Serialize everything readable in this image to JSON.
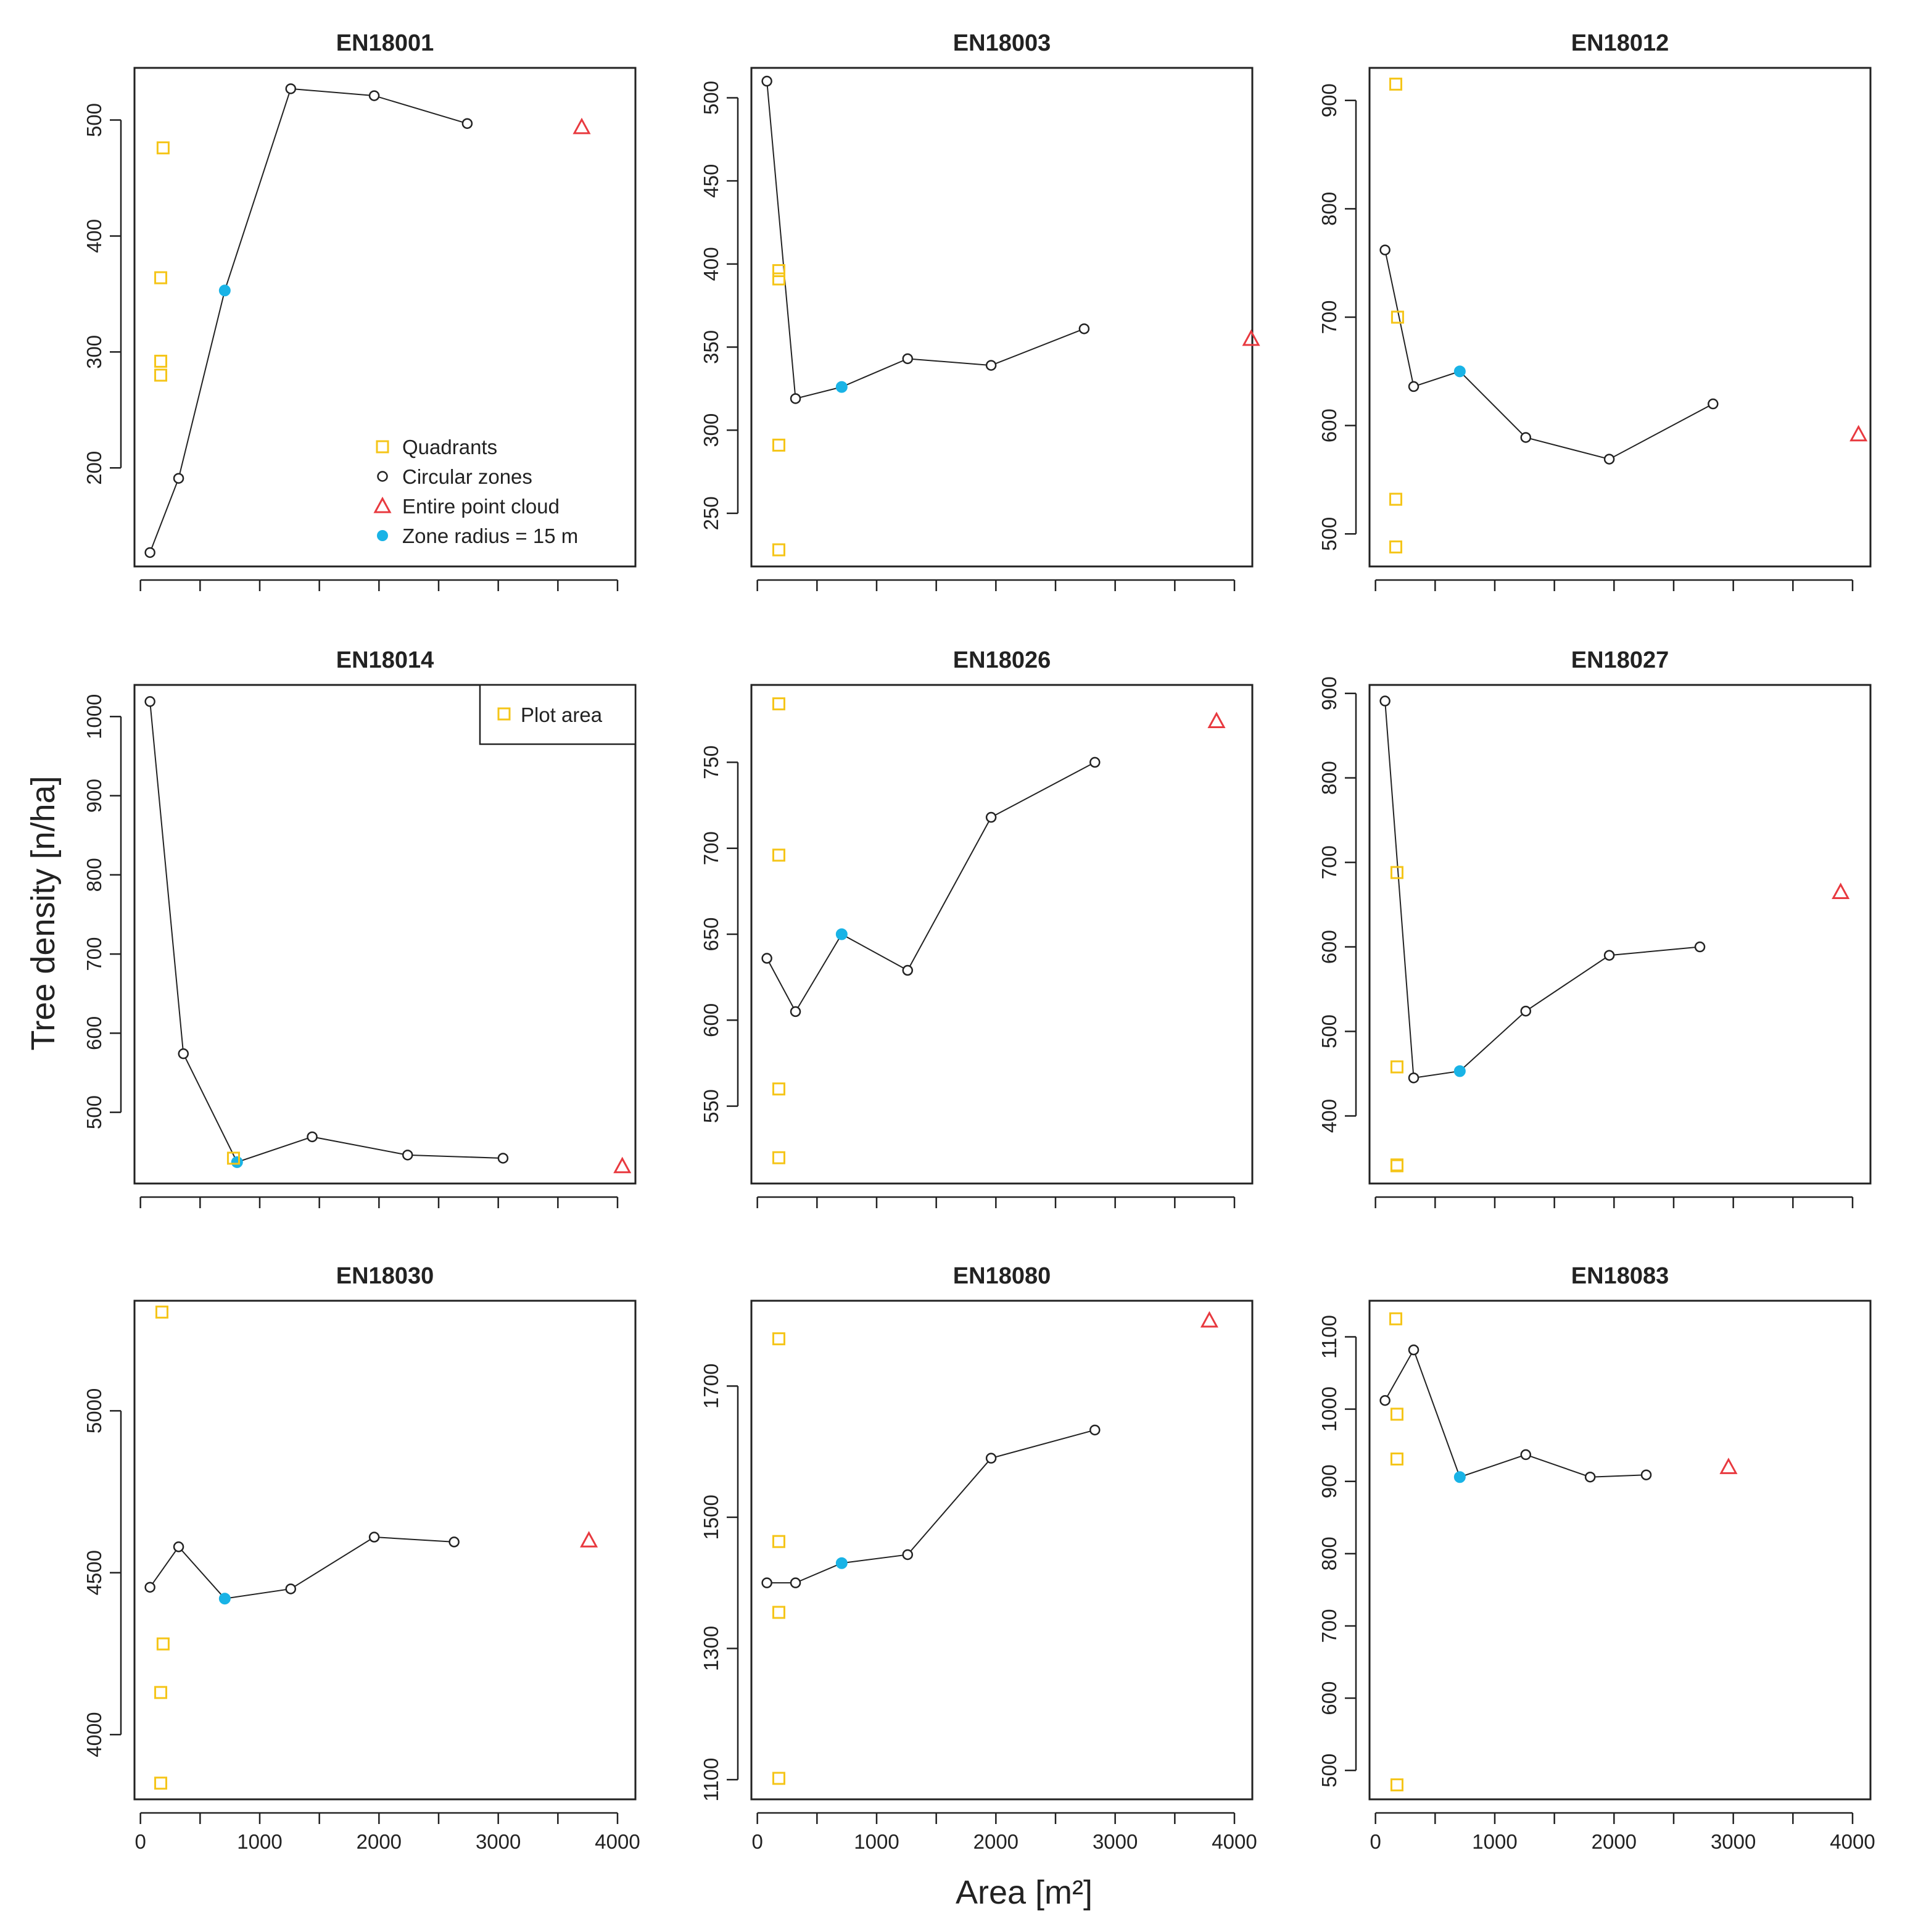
{
  "figure": {
    "ylabel": "Tree density [n/ha]",
    "xlabel": "Area [m²]"
  },
  "legend_main": {
    "items": [
      {
        "label": "Quadrants",
        "marker": "square",
        "color": "#f5c518"
      },
      {
        "label": "Circular zones",
        "marker": "circle",
        "color": "#222222"
      },
      {
        "label": "Entire point cloud",
        "marker": "triangle",
        "color": "#e8393f"
      },
      {
        "label": "Zone radius = 15 m",
        "marker": "dot",
        "color": "#19b3e6"
      }
    ]
  },
  "legend_plot": {
    "label": "Plot area",
    "marker": "square",
    "color": "#f5c518"
  },
  "colors": {
    "quadrants": "#f5c518",
    "circular": "#222222",
    "entire": "#e8393f",
    "highlight": "#19b3e6"
  },
  "chart_data": [
    {
      "type": "scatter",
      "title": "EN18001",
      "xlim": [
        -50,
        4150
      ],
      "ylim": [
        115,
        545
      ],
      "xticks": [
        0,
        1000,
        2000,
        3000,
        4000
      ],
      "show_xtick_labels": false,
      "yticks": [
        200,
        300,
        400,
        500
      ],
      "quadrants": [
        [
          190,
          476
        ],
        [
          170,
          364
        ],
        [
          170,
          292
        ],
        [
          170,
          280
        ]
      ],
      "circular": [
        [
          80,
          127
        ],
        [
          320,
          191
        ],
        [
          707,
          353
        ],
        [
          1260,
          527
        ],
        [
          1960,
          521
        ],
        [
          2740,
          497
        ]
      ],
      "highlight_index": 2,
      "entire": [
        3700,
        494
      ]
    },
    {
      "type": "scatter",
      "title": "EN18003",
      "xlim": [
        -50,
        4150
      ],
      "ylim": [
        218,
        518
      ],
      "xticks": [
        0,
        1000,
        2000,
        3000,
        4000
      ],
      "show_xtick_labels": false,
      "yticks": [
        250,
        300,
        350,
        400,
        450,
        500
      ],
      "quadrants": [
        [
          180,
          396
        ],
        [
          180,
          391
        ],
        [
          180,
          291
        ],
        [
          180,
          228
        ]
      ],
      "circular": [
        [
          80,
          510
        ],
        [
          320,
          319
        ],
        [
          707,
          326
        ],
        [
          1260,
          343
        ],
        [
          1960,
          339
        ],
        [
          2740,
          361
        ]
      ],
      "highlight_index": 2,
      "entire": [
        4140,
        355
      ]
    },
    {
      "type": "scatter",
      "title": "EN18012",
      "xlim": [
        -50,
        4150
      ],
      "ylim": [
        470,
        930
      ],
      "xticks": [
        0,
        1000,
        2000,
        3000,
        4000
      ],
      "show_xtick_labels": false,
      "yticks": [
        500,
        600,
        700,
        800,
        900
      ],
      "quadrants": [
        [
          170,
          915
        ],
        [
          185,
          700
        ],
        [
          170,
          532
        ],
        [
          170,
          488
        ]
      ],
      "circular": [
        [
          80,
          762
        ],
        [
          320,
          636
        ],
        [
          707,
          650
        ],
        [
          1260,
          589
        ],
        [
          1960,
          569
        ],
        [
          2830,
          620
        ]
      ],
      "highlight_index": 2,
      "entire": [
        4050,
        592
      ]
    },
    {
      "type": "scatter",
      "title": "EN18014",
      "xlim": [
        -50,
        4150
      ],
      "ylim": [
        410,
        1040
      ],
      "xticks": [
        0,
        1000,
        2000,
        3000,
        4000
      ],
      "show_xtick_labels": false,
      "yticks": [
        500,
        600,
        700,
        800,
        900,
        1000
      ],
      "quadrants": [
        [
          780,
          442
        ]
      ],
      "circular": [
        [
          80,
          1019
        ],
        [
          360,
          574
        ],
        [
          810,
          437
        ],
        [
          1440,
          469
        ],
        [
          2240,
          446
        ],
        [
          3040,
          442
        ]
      ],
      "highlight_index": 2,
      "entire": [
        4040,
        432
      ],
      "legend": "plot"
    },
    {
      "type": "scatter",
      "title": "EN18026",
      "xlim": [
        -50,
        4150
      ],
      "ylim": [
        505,
        795
      ],
      "xticks": [
        0,
        1000,
        2000,
        3000,
        4000
      ],
      "show_xtick_labels": false,
      "yticks": [
        550,
        600,
        650,
        700,
        750
      ],
      "quadrants": [
        [
          180,
          784
        ],
        [
          180,
          696
        ],
        [
          180,
          560
        ],
        [
          180,
          520
        ]
      ],
      "circular": [
        [
          80,
          636
        ],
        [
          320,
          605
        ],
        [
          707,
          650
        ],
        [
          1260,
          629
        ],
        [
          1960,
          718
        ],
        [
          2830,
          750
        ]
      ],
      "highlight_index": 2,
      "entire": [
        3850,
        774
      ]
    },
    {
      "type": "scatter",
      "title": "EN18027",
      "xlim": [
        -50,
        4150
      ],
      "ylim": [
        320,
        910
      ],
      "xticks": [
        0,
        1000,
        2000,
        3000,
        4000
      ],
      "show_xtick_labels": false,
      "yticks": [
        400,
        500,
        600,
        700,
        800,
        900
      ],
      "quadrants": [
        [
          180,
          688
        ],
        [
          180,
          458
        ],
        [
          180,
          342
        ],
        [
          180,
          341
        ]
      ],
      "circular": [
        [
          80,
          891
        ],
        [
          320,
          445
        ],
        [
          707,
          453
        ],
        [
          1260,
          524
        ],
        [
          1960,
          590
        ],
        [
          2720,
          600
        ]
      ],
      "highlight_index": 2,
      "entire": [
        3900,
        665
      ]
    },
    {
      "type": "scatter",
      "title": "EN18030",
      "xlim": [
        -50,
        4150
      ],
      "ylim": [
        3800,
        5340
      ],
      "xticks": [
        0,
        1000,
        2000,
        3000,
        4000
      ],
      "show_xtick_labels": true,
      "yticks": [
        4000,
        4500,
        5000
      ],
      "quadrants": [
        [
          180,
          5305
        ],
        [
          190,
          4280
        ],
        [
          170,
          4130
        ],
        [
          170,
          3850
        ]
      ],
      "circular": [
        [
          80,
          4455
        ],
        [
          320,
          4580
        ],
        [
          707,
          4420
        ],
        [
          1260,
          4450
        ],
        [
          1960,
          4610
        ],
        [
          2630,
          4595
        ]
      ],
      "highlight_index": 2,
      "entire": [
        3760,
        4600
      ]
    },
    {
      "type": "scatter",
      "title": "EN18080",
      "xlim": [
        -50,
        4150
      ],
      "ylim": [
        1070,
        1830
      ],
      "xticks": [
        0,
        1000,
        2000,
        3000,
        4000
      ],
      "show_xtick_labels": true,
      "yticks": [
        1100,
        1300,
        1500,
        1700
      ],
      "quadrants": [
        [
          180,
          1772
        ],
        [
          180,
          1463
        ],
        [
          180,
          1355
        ],
        [
          180,
          1102
        ]
      ],
      "circular": [
        [
          80,
          1400
        ],
        [
          320,
          1400
        ],
        [
          707,
          1430
        ],
        [
          1260,
          1443
        ],
        [
          1960,
          1590
        ],
        [
          2830,
          1633
        ]
      ],
      "highlight_index": 2,
      "entire": [
        3790,
        1800
      ]
    },
    {
      "type": "scatter",
      "title": "EN18083",
      "xlim": [
        -50,
        4150
      ],
      "ylim": [
        460,
        1150
      ],
      "xticks": [
        0,
        1000,
        2000,
        3000,
        4000
      ],
      "show_xtick_labels": true,
      "yticks": [
        500,
        600,
        700,
        800,
        900,
        1000,
        1100
      ],
      "quadrants": [
        [
          170,
          1125
        ],
        [
          180,
          993
        ],
        [
          180,
          931
        ],
        [
          180,
          480
        ]
      ],
      "circular": [
        [
          80,
          1012
        ],
        [
          320,
          1082
        ],
        [
          707,
          906
        ],
        [
          1260,
          937
        ],
        [
          1800,
          906
        ],
        [
          2270,
          909
        ]
      ],
      "highlight_index": 2,
      "entire": [
        2960,
        920
      ]
    }
  ]
}
